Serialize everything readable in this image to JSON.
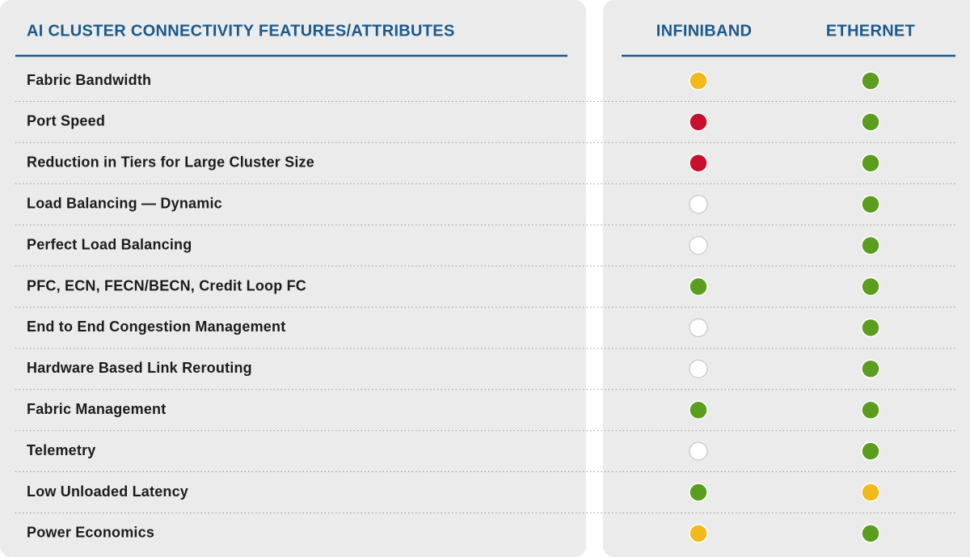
{
  "header": {
    "title": "AI CLUSTER CONNECTIVITY FEATURES/ATTRIBUTES",
    "columns": [
      "INFINIBAND",
      "ETHERNET"
    ]
  },
  "table": {
    "rows": [
      {
        "feature": "Fabric Bandwidth",
        "colors": [
          "#f2b81c",
          "#5b9e1f"
        ]
      },
      {
        "feature": "Port Speed",
        "colors": [
          "#c8102e",
          "#5b9e1f"
        ]
      },
      {
        "feature": "Reduction in Tiers for Large Cluster Size",
        "colors": [
          "#c8102e",
          "#5b9e1f"
        ]
      },
      {
        "feature": "Load Balancing — Dynamic",
        "colors": [
          "#ffffff",
          "#5b9e1f"
        ]
      },
      {
        "feature": "Perfect Load Balancing",
        "colors": [
          "#ffffff",
          "#5b9e1f"
        ]
      },
      {
        "feature": "PFC, ECN, FECN/BECN, Credit Loop FC",
        "colors": [
          "#5b9e1f",
          "#5b9e1f"
        ]
      },
      {
        "feature": "End to End Congestion Management",
        "colors": [
          "#ffffff",
          "#5b9e1f"
        ]
      },
      {
        "feature": "Hardware Based Link Rerouting",
        "colors": [
          "#ffffff",
          "#5b9e1f"
        ]
      },
      {
        "feature": "Fabric Management",
        "colors": [
          "#5b9e1f",
          "#5b9e1f"
        ]
      },
      {
        "feature": "Telemetry",
        "colors": [
          "#ffffff",
          "#5b9e1f"
        ]
      },
      {
        "feature": "Low Unloaded Latency",
        "colors": [
          "#5b9e1f",
          "#f2b81c"
        ]
      },
      {
        "feature": "Power Economics",
        "colors": [
          "#f2b81c",
          "#5b9e1f"
        ]
      }
    ]
  }
}
